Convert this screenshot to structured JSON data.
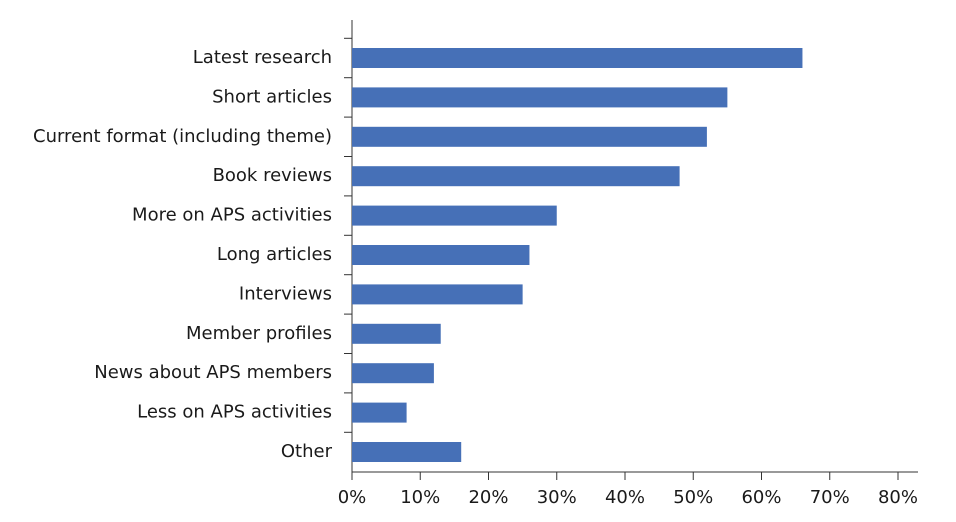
{
  "chart_data": {
    "type": "bar",
    "orientation": "horizontal",
    "categories": [
      "Latest research",
      "Short articles",
      "Current format (including theme)",
      "Book reviews",
      "More on APS activities",
      "Long articles",
      "Interviews",
      "Member profiles",
      "News about APS members",
      "Less on APS activities",
      "Other"
    ],
    "values": [
      66,
      55,
      52,
      48,
      30,
      26,
      25,
      13,
      12,
      8,
      16
    ],
    "color": "#4670b7",
    "xlim": [
      0,
      80
    ],
    "xticks": [
      {
        "value": 0,
        "label": "0%"
      },
      {
        "value": 10,
        "label": "10%"
      },
      {
        "value": 20,
        "label": "20%"
      },
      {
        "value": 30,
        "label": "30%"
      },
      {
        "value": 40,
        "label": "40%"
      },
      {
        "value": 50,
        "label": "50%"
      },
      {
        "value": 60,
        "label": "60%"
      },
      {
        "value": 70,
        "label": "70%"
      },
      {
        "value": 80,
        "label": "80%"
      }
    ],
    "grid": false
  }
}
